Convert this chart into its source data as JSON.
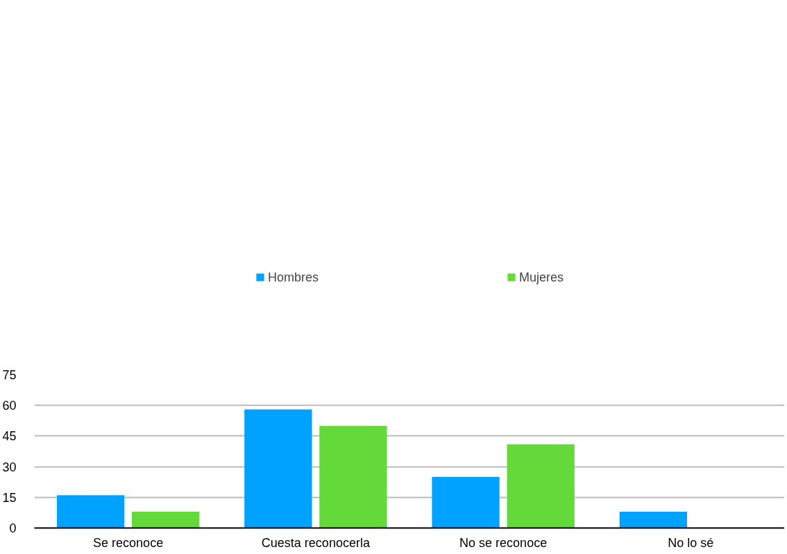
{
  "chart_data": {
    "type": "bar",
    "categories": [
      "Se reconoce",
      "Cuesta reconocerla",
      "No se reconoce",
      "No lo sé"
    ],
    "series": [
      {
        "name": "Hombres",
        "color": "#00a2ff",
        "values": [
          16,
          58,
          25,
          8
        ]
      },
      {
        "name": "Mujeres",
        "color": "#63d93a",
        "values": [
          8,
          50,
          41,
          0
        ]
      }
    ],
    "ylim": [
      0,
      75
    ],
    "yticks": [
      0,
      15,
      30,
      45,
      60,
      75
    ],
    "grid": "y",
    "legend": "top"
  }
}
